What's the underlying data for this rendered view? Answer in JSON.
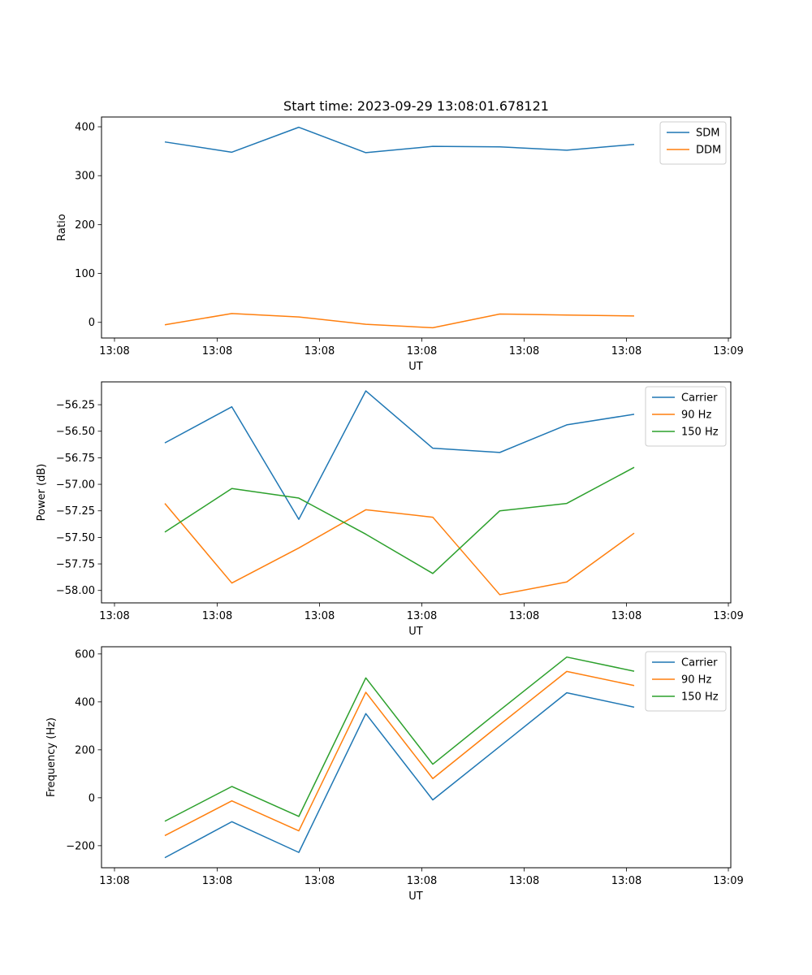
{
  "figure_title": "Start time: 2023-09-29 13:08:01.678121",
  "chart_data": [
    {
      "type": "line",
      "xlabel": "UT",
      "ylabel": "Ratio",
      "x_tick_labels": [
        "13:08",
        "13:08",
        "13:08",
        "13:08",
        "13:08",
        "13:08",
        "13:09"
      ],
      "y_ticks": [
        0,
        100,
        200,
        300,
        400
      ],
      "y_tick_labels": [
        "0",
        "100",
        "200",
        "300",
        "400"
      ],
      "ylim": [
        -32,
        420
      ],
      "x": [
        0,
        1,
        2,
        3,
        4,
        5,
        6,
        7
      ],
      "series": [
        {
          "name": "SDM",
          "color": "#1f77b4",
          "values": [
            369,
            348,
            399,
            347,
            360,
            359,
            352,
            364
          ]
        },
        {
          "name": "DDM",
          "color": "#ff7f0e",
          "values": [
            -5,
            18,
            11,
            -4,
            -11,
            17,
            15,
            13
          ]
        }
      ]
    },
    {
      "type": "line",
      "xlabel": "UT",
      "ylabel": "Power (dB)",
      "x_tick_labels": [
        "13:08",
        "13:08",
        "13:08",
        "13:08",
        "13:08",
        "13:08",
        "13:09"
      ],
      "y_ticks": [
        -58.0,
        -57.75,
        -57.5,
        -57.25,
        -57.0,
        -56.75,
        -56.5,
        -56.25
      ],
      "y_tick_labels": [
        "−58.00",
        "−57.75",
        "−57.50",
        "−57.25",
        "−57.00",
        "−56.75",
        "−56.50",
        "−56.25"
      ],
      "ylim": [
        -58.117,
        -56.035
      ],
      "x": [
        0,
        1,
        2,
        3,
        4,
        5,
        6,
        7
      ],
      "series": [
        {
          "name": "Carrier",
          "color": "#1f77b4",
          "values": [
            -56.61,
            -56.27,
            -57.33,
            -56.12,
            -56.66,
            -56.7,
            -56.44,
            -56.34
          ]
        },
        {
          "name": "90 Hz",
          "color": "#ff7f0e",
          "values": [
            -57.18,
            -57.93,
            -57.6,
            -57.24,
            -57.31,
            -58.04,
            -57.92,
            -57.46
          ]
        },
        {
          "name": "150 Hz",
          "color": "#2ca02c",
          "values": [
            -57.45,
            -57.04,
            -57.13,
            -57.47,
            -57.84,
            -57.25,
            -57.18,
            -56.84
          ]
        }
      ]
    },
    {
      "type": "line",
      "xlabel": "UT",
      "ylabel": "Frequency (Hz)",
      "x_tick_labels": [
        "13:08",
        "13:08",
        "13:08",
        "13:08",
        "13:08",
        "13:08",
        "13:09"
      ],
      "y_ticks": [
        -200,
        0,
        200,
        400,
        600
      ],
      "y_tick_labels": [
        "−200",
        "0",
        "200",
        "400",
        "600"
      ],
      "ylim": [
        -292,
        630
      ],
      "x": [
        0,
        1,
        2,
        3,
        4,
        5,
        6,
        7
      ],
      "series": [
        {
          "name": "Carrier",
          "color": "#1f77b4",
          "values": [
            -250,
            -100,
            -228,
            351,
            -9,
            214,
            438,
            378
          ]
        },
        {
          "name": "90 Hz",
          "color": "#ff7f0e",
          "values": [
            -158,
            -13,
            -138,
            440,
            80,
            305,
            527,
            468
          ]
        },
        {
          "name": "150 Hz",
          "color": "#2ca02c",
          "values": [
            -98,
            47,
            -78,
            500,
            140,
            365,
            587,
            528
          ]
        }
      ]
    }
  ]
}
